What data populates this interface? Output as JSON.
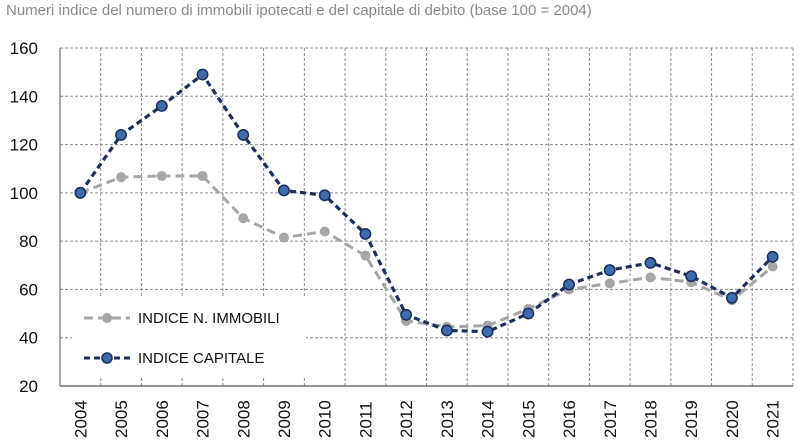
{
  "chart_data": {
    "type": "line",
    "title": "Numeri indice del numero di immobili ipotecati e del capitale di debito (base 100 = 2004)",
    "xlabel": "",
    "ylabel": "",
    "categories": [
      "2004",
      "2005",
      "2006",
      "2007",
      "2008",
      "2009",
      "2010",
      "2011",
      "2012",
      "2013",
      "2014",
      "2015",
      "2016",
      "2017",
      "2018",
      "2019",
      "2020",
      "2021"
    ],
    "ylim": [
      20,
      160
    ],
    "yticks": [
      20,
      40,
      60,
      80,
      100,
      120,
      140,
      160
    ],
    "grid": true,
    "legend_position": "lower-left",
    "series": [
      {
        "name": "INDICE N. IMMOBILI",
        "color": "#a6a6a6",
        "line_style": "dashed",
        "values": [
          100,
          106.5,
          107,
          107,
          89.5,
          81.5,
          84,
          74,
          47,
          44.5,
          45,
          52,
          60,
          62.5,
          65,
          63,
          55.5,
          69.5
        ]
      },
      {
        "name": "INDICE CAPITALE",
        "color": "#1c2e5a",
        "marker_color": "#3d6bab",
        "line_style": "dashed",
        "values": [
          100,
          124,
          136,
          149,
          124,
          101,
          99,
          83,
          49.5,
          43,
          42.5,
          50,
          62,
          68,
          71,
          65.5,
          56.5,
          73.5
        ]
      }
    ]
  }
}
